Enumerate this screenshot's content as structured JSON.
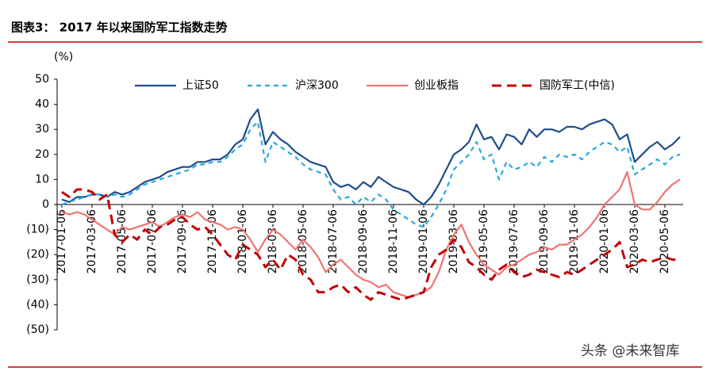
{
  "header": {
    "title": "图表3：  2017 年以来国防军工指数走势"
  },
  "chart_data": {
    "type": "line",
    "y_label": "(%)",
    "categories": [
      "2017-01-06",
      null,
      null,
      null,
      "2017-03-06",
      null,
      null,
      null,
      "2017-05-06",
      null,
      null,
      null,
      "2017-07-06",
      null,
      null,
      null,
      "2017-09-06",
      null,
      null,
      null,
      "2017-11-06",
      null,
      null,
      null,
      "2018-01-06",
      null,
      null,
      null,
      "2018-03-06",
      null,
      null,
      null,
      "2018-05-06",
      null,
      null,
      null,
      "2018-07-06",
      null,
      null,
      null,
      "2018-09-06",
      null,
      null,
      null,
      "2018-11-06",
      null,
      null,
      null,
      "2019-01-06",
      null,
      null,
      null,
      "2019-03-06",
      null,
      null,
      null,
      "2019-05-06",
      null,
      null,
      null,
      "2019-07-06",
      null,
      null,
      null,
      "2019-09-06",
      null,
      null,
      null,
      "2019-11-06",
      null,
      null,
      null,
      "2020-01-06",
      null,
      null,
      null,
      "2020-03-06",
      null,
      null,
      null,
      "2020-05-06",
      null,
      null
    ],
    "series": [
      {
        "name": "上证50",
        "color": "#1f4e8c",
        "dash": "none",
        "values": [
          2,
          1,
          3,
          3,
          4,
          4,
          3,
          5,
          4,
          5,
          7,
          9,
          10,
          11,
          13,
          14,
          15,
          15,
          17,
          17,
          18,
          18,
          20,
          24,
          26,
          34,
          38,
          24,
          29,
          26,
          24,
          21,
          19,
          17,
          16,
          15,
          9,
          7,
          8,
          6,
          9,
          7,
          11,
          9,
          7,
          6,
          5,
          2,
          0,
          3,
          8,
          14,
          20,
          22,
          25,
          32,
          26,
          27,
          22,
          28,
          27,
          24,
          30,
          27,
          30,
          30,
          29,
          31,
          31,
          30,
          32,
          33,
          34,
          32,
          26,
          28,
          17,
          20,
          23,
          25,
          22,
          24,
          27
        ]
      },
      {
        "name": "沪深300",
        "color": "#29a8e0",
        "dash": "6 5",
        "values": [
          0,
          1,
          2,
          3,
          4,
          4,
          3,
          4,
          3,
          4,
          6,
          8,
          9,
          10,
          11,
          12,
          13,
          14,
          16,
          16,
          17,
          17,
          19,
          22,
          24,
          30,
          33,
          17,
          25,
          23,
          21,
          19,
          16,
          14,
          13,
          12,
          6,
          2,
          3,
          0,
          3,
          1,
          4,
          2,
          -2,
          -4,
          -6,
          -8,
          -9,
          -5,
          0,
          6,
          14,
          17,
          20,
          25,
          18,
          20,
          10,
          17,
          14,
          15,
          17,
          15,
          19,
          17,
          20,
          19,
          20,
          18,
          21,
          23,
          25,
          24,
          21,
          23,
          12,
          14,
          16,
          18,
          16,
          19,
          20
        ]
      },
      {
        "name": "创业板指",
        "color": "#f07470",
        "dash": "none",
        "values": [
          -3,
          -4,
          -3,
          -4,
          -6,
          -8,
          -10,
          -12,
          -9,
          -10,
          -9,
          -8,
          -7,
          -9,
          -7,
          -5,
          -4,
          -5,
          -3,
          -6,
          -7,
          -8,
          -10,
          -9,
          -10,
          -14,
          -19,
          -14,
          -10,
          -12,
          -15,
          -18,
          -14,
          -17,
          -21,
          -27,
          -24,
          -22,
          -25,
          -28,
          -30,
          -31,
          -33,
          -32,
          -35,
          -36,
          -37,
          -36,
          -35,
          -33,
          -27,
          -18,
          -12,
          -8,
          -15,
          -20,
          -24,
          -26,
          -28,
          -25,
          -24,
          -22,
          -20,
          -19,
          -17,
          -18,
          -16,
          -16,
          -14,
          -12,
          -9,
          -5,
          0,
          3,
          6,
          13,
          0,
          -2,
          -2,
          1,
          5,
          8,
          10
        ]
      },
      {
        "name": "国防军工(中信)",
        "color": "#c00000",
        "dash": "12 7",
        "values": [
          5,
          3,
          6,
          6,
          5,
          2,
          4,
          -12,
          -15,
          -12,
          -14,
          -10,
          -12,
          -9,
          -8,
          -6,
          -5,
          -8,
          -10,
          -9,
          -12,
          -16,
          -20,
          -22,
          -16,
          -18,
          -20,
          -25,
          -22,
          -26,
          -20,
          -22,
          -28,
          -30,
          -35,
          -35,
          -33,
          -32,
          -35,
          -33,
          -36,
          -38,
          -35,
          -36,
          -37,
          -38,
          -37,
          -36,
          -35,
          -25,
          -20,
          -18,
          -14,
          -17,
          -23,
          -25,
          -28,
          -30,
          -26,
          -24,
          -27,
          -29,
          -28,
          -26,
          -27,
          -28,
          -29,
          -27,
          -28,
          -26,
          -24,
          -22,
          -20,
          -18,
          -15,
          -25,
          -24,
          -22,
          -23,
          -22,
          -21,
          -22,
          -22
        ]
      }
    ],
    "ylim": [
      -50,
      50
    ],
    "yticks": [
      {
        "value": -50,
        "label": "(50)"
      },
      {
        "value": -40,
        "label": "(40)"
      },
      {
        "value": -30,
        "label": "(30)"
      },
      {
        "value": -20,
        "label": "(20)"
      },
      {
        "value": -10,
        "label": "(10)"
      },
      0,
      10,
      20,
      30,
      40,
      50
    ],
    "grid": false,
    "legend": "top"
  },
  "footer": {
    "watermark": "头条 @未来智库"
  }
}
